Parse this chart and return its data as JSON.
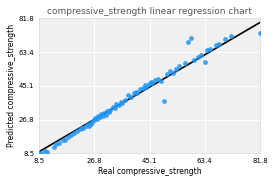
{
  "title": "compressive_strength linear regression chart",
  "xlabel": "Real compressive_strength",
  "ylabel": "Predicted compressive_strength",
  "xlim": [
    8.5,
    81.8
  ],
  "ylim": [
    8.5,
    81.8
  ],
  "xticks": [
    8.5,
    26.8,
    45.1,
    63.4,
    81.8
  ],
  "yticks": [
    8.5,
    26.8,
    45.1,
    63.4,
    81.8
  ],
  "scatter_color": "#2196F3",
  "line_color": "black",
  "plot_bg": "#f0f0f0",
  "fig_bg": "#ffffff",
  "scatter_points": [
    [
      8.5,
      8.9
    ],
    [
      9.2,
      8.5
    ],
    [
      10.5,
      9.8
    ],
    [
      11.0,
      9.2
    ],
    [
      13.5,
      12.0
    ],
    [
      14.0,
      13.5
    ],
    [
      15.0,
      14.2
    ],
    [
      16.5,
      16.0
    ],
    [
      17.0,
      15.5
    ],
    [
      18.0,
      17.5
    ],
    [
      19.0,
      18.5
    ],
    [
      20.0,
      19.5
    ],
    [
      21.0,
      20.5
    ],
    [
      22.0,
      21.5
    ],
    [
      22.5,
      22.0
    ],
    [
      23.0,
      22.0
    ],
    [
      24.0,
      23.5
    ],
    [
      24.5,
      24.5
    ],
    [
      25.0,
      23.5
    ],
    [
      25.5,
      24.5
    ],
    [
      26.0,
      25.5
    ],
    [
      26.5,
      26.5
    ],
    [
      27.0,
      27.5
    ],
    [
      27.5,
      27.0
    ],
    [
      28.0,
      28.5
    ],
    [
      28.5,
      28.0
    ],
    [
      29.0,
      30.0
    ],
    [
      29.5,
      29.0
    ],
    [
      30.0,
      30.5
    ],
    [
      30.5,
      29.5
    ],
    [
      31.0,
      31.5
    ],
    [
      31.5,
      31.0
    ],
    [
      32.0,
      32.0
    ],
    [
      33.0,
      33.5
    ],
    [
      33.5,
      33.0
    ],
    [
      34.0,
      35.5
    ],
    [
      35.0,
      34.5
    ],
    [
      35.5,
      36.5
    ],
    [
      36.0,
      36.0
    ],
    [
      37.0,
      37.5
    ],
    [
      38.0,
      40.0
    ],
    [
      39.0,
      39.0
    ],
    [
      40.0,
      41.0
    ],
    [
      40.5,
      42.0
    ],
    [
      41.0,
      41.5
    ],
    [
      42.0,
      43.5
    ],
    [
      43.0,
      44.0
    ],
    [
      43.5,
      45.5
    ],
    [
      44.0,
      44.5
    ],
    [
      45.0,
      46.0
    ],
    [
      45.5,
      47.0
    ],
    [
      46.0,
      46.5
    ],
    [
      47.0,
      48.5
    ],
    [
      48.0,
      49.0
    ],
    [
      49.0,
      48.0
    ],
    [
      50.0,
      37.0
    ],
    [
      51.0,
      51.5
    ],
    [
      52.0,
      53.0
    ],
    [
      53.0,
      52.0
    ],
    [
      54.0,
      54.0
    ],
    [
      55.0,
      56.0
    ],
    [
      57.0,
      57.5
    ],
    [
      58.0,
      69.0
    ],
    [
      59.0,
      71.0
    ],
    [
      60.0,
      59.0
    ],
    [
      61.0,
      61.0
    ],
    [
      62.0,
      62.0
    ],
    [
      63.4,
      58.0
    ],
    [
      64.0,
      64.5
    ],
    [
      65.0,
      65.0
    ],
    [
      67.0,
      67.0
    ],
    [
      68.0,
      68.0
    ],
    [
      70.0,
      70.5
    ],
    [
      72.0,
      72.0
    ],
    [
      81.8,
      74.0
    ]
  ],
  "line_x": [
    8.5,
    81.8
  ],
  "line_y": [
    9.5,
    79.5
  ],
  "title_fontsize": 6.5,
  "label_fontsize": 5.5,
  "tick_fontsize": 5,
  "scatter_size": 12,
  "scatter_alpha": 0.85,
  "line_width": 1.2
}
